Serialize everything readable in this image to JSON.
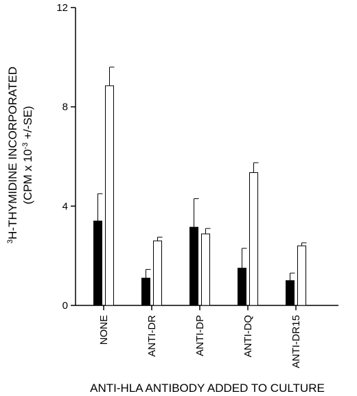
{
  "chart_data": {
    "type": "bar",
    "categories": [
      "NONE",
      "ANTI-DR",
      "ANTI-DP",
      "ANTI-DQ",
      "ANTI-DR15"
    ],
    "series": [
      {
        "color": "#000000",
        "values": [
          3.4,
          1.1,
          3.15,
          1.5,
          1.0
        ],
        "errors": [
          1.1,
          0.35,
          1.15,
          0.8,
          0.3
        ]
      },
      {
        "color": "#ffffff",
        "values": [
          8.85,
          2.6,
          2.88,
          5.35,
          2.4
        ],
        "errors": [
          0.75,
          0.15,
          0.22,
          0.4,
          0.12
        ]
      }
    ],
    "ylim": [
      0,
      12
    ],
    "yticks": [
      "0",
      "4",
      "8",
      "12"
    ],
    "ylabel_line1_sup": "3",
    "ylabel_line1": "H-THYMIDINE INCORPORATED",
    "ylabel_line2_pre": "(CPM x 10",
    "ylabel_line2_sup": "-3",
    "ylabel_line2_post": " +/-SE)",
    "xlabel": "ANTI-HLA ANTIBODY ADDED TO CULTURE"
  }
}
